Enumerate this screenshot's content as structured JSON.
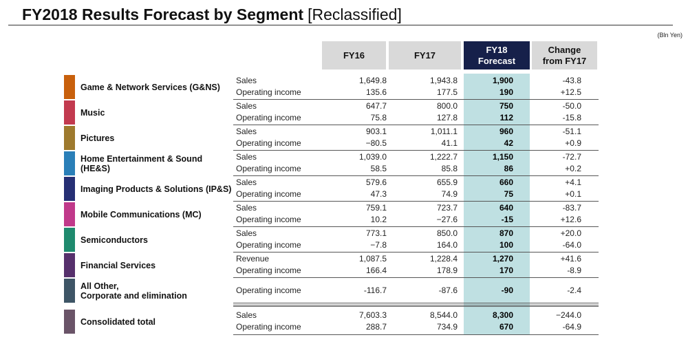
{
  "title": {
    "main": "FY2018 Results Forecast by Segment",
    "sub": "[Reclassified]"
  },
  "unit": "(Bln Yen)",
  "headers": {
    "fy16": "FY16",
    "fy17": "FY17",
    "fy18": [
      "FY18",
      "Forecast"
    ],
    "change": [
      "Change",
      "from FY17"
    ]
  },
  "colors": {
    "header_bg": "#d9d9d9",
    "forecast_header_bg": "#16204a",
    "forecast_col_bg": "#bfe0e2"
  },
  "segments": [
    {
      "name": "Game & Network Services (G&NS)",
      "color": "#c8600c",
      "lines": [
        {
          "metric": "Sales",
          "fy16": "1,649.8",
          "fy17": "1,943.8",
          "fy18": "1,900",
          "change": "-43.8"
        },
        {
          "metric": "Operating income",
          "fy16": "135.6",
          "fy17": "177.5",
          "fy18": "190",
          "change": "+12.5"
        }
      ]
    },
    {
      "name": "Music",
      "color": "#c23a4f",
      "lines": [
        {
          "metric": "Sales",
          "fy16": "647.7",
          "fy17": "800.0",
          "fy18": "750",
          "change": "-50.0"
        },
        {
          "metric": "Operating income",
          "fy16": "75.8",
          "fy17": "127.8",
          "fy18": "112",
          "change": "-15.8"
        }
      ]
    },
    {
      "name": "Pictures",
      "color": "#9e7a2e",
      "lines": [
        {
          "metric": "Sales",
          "fy16": "903.1",
          "fy17": "1,011.1",
          "fy18": "960",
          "change": "-51.1"
        },
        {
          "metric": "Operating income",
          "fy16": "−80.5",
          "fy17": "41.1",
          "fy18": "42",
          "change": "+0.9"
        }
      ]
    },
    {
      "name": "Home Entertainment & Sound (HE&S)",
      "color": "#2a7fb8",
      "lines": [
        {
          "metric": "Sales",
          "fy16": "1,039.0",
          "fy17": "1,222.7",
          "fy18": "1,150",
          "change": "-72.7"
        },
        {
          "metric": "Operating income",
          "fy16": "58.5",
          "fy17": "85.8",
          "fy18": "86",
          "change": "+0.2"
        }
      ]
    },
    {
      "name": "Imaging Products & Solutions (IP&S)",
      "color": "#262f74",
      "lines": [
        {
          "metric": "Sales",
          "fy16": "579.6",
          "fy17": "655.9",
          "fy18": "660",
          "change": "+4.1"
        },
        {
          "metric": "Operating income",
          "fy16": "47.3",
          "fy17": "74.9",
          "fy18": "75",
          "change": "+0.1"
        }
      ]
    },
    {
      "name": "Mobile Communications (MC)",
      "color": "#c0398a",
      "lines": [
        {
          "metric": "Sales",
          "fy16": "759.1",
          "fy17": "723.7",
          "fy18": "640",
          "change": "-83.7"
        },
        {
          "metric": "Operating income",
          "fy16": "10.2",
          "fy17": "−27.6",
          "fy18": "-15",
          "change": "+12.6"
        }
      ]
    },
    {
      "name": "Semiconductors",
      "color": "#1f8a6e",
      "lines": [
        {
          "metric": "Sales",
          "fy16": "773.1",
          "fy17": "850.0",
          "fy18": "870",
          "change": "+20.0"
        },
        {
          "metric": "Operating income",
          "fy16": "−7.8",
          "fy17": "164.0",
          "fy18": "100",
          "change": "-64.0"
        }
      ]
    },
    {
      "name": "Financial Services",
      "color": "#56306c",
      "lines": [
        {
          "metric": "Revenue",
          "fy16": "1,087.5",
          "fy17": "1,228.4",
          "fy18": "1,270",
          "change": "+41.6"
        },
        {
          "metric": "Operating income",
          "fy16": "166.4",
          "fy17": "178.9",
          "fy18": "170",
          "change": "-8.9"
        }
      ]
    },
    {
      "name": "All Other,\nCorporate and elimination",
      "color": "#3e5566",
      "lines": [
        {
          "metric": "Operating income",
          "fy16": "-116.7",
          "fy17": "-87.6",
          "fy18": "-90",
          "change": "-2.4"
        }
      ]
    },
    {
      "name": "Consolidated total",
      "color": "#6a5468",
      "lines": [
        {
          "metric": "Sales",
          "fy16": "7,603.3",
          "fy17": "8,544.0",
          "fy18": "8,300",
          "change": "−244.0"
        },
        {
          "metric": "Operating income",
          "fy16": "288.7",
          "fy17": "734.9",
          "fy18": "670",
          "change": "-64.9"
        }
      ]
    }
  ]
}
